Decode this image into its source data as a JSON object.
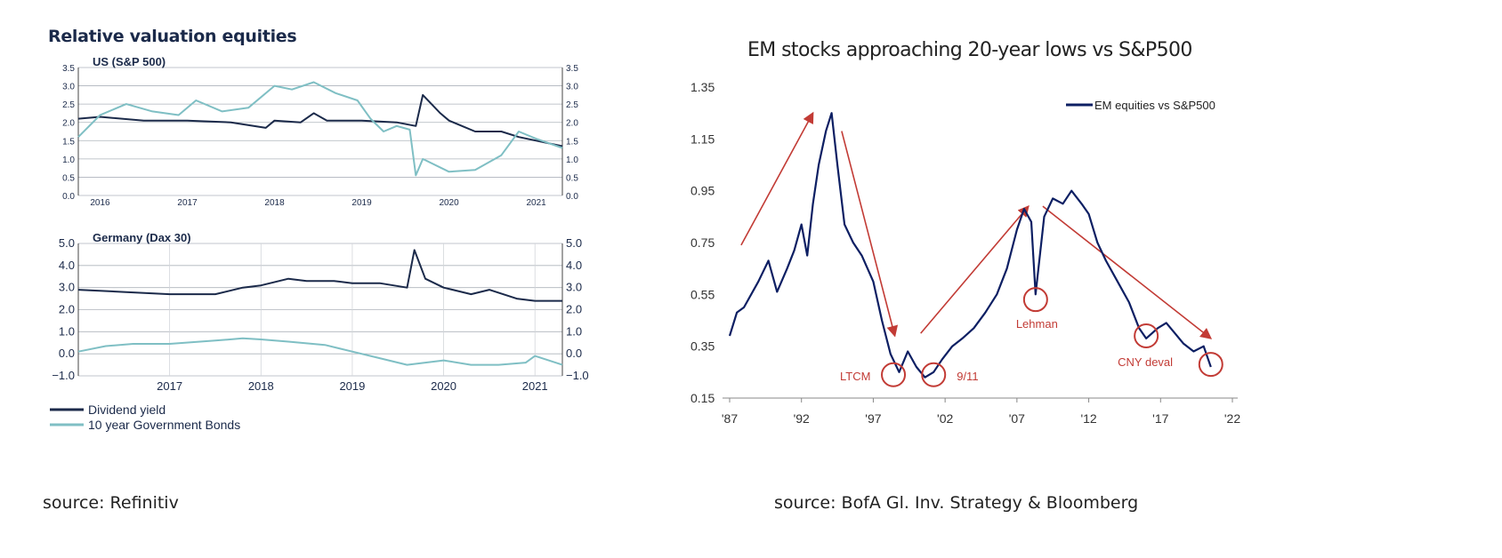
{
  "left": {
    "title": "Relative valuation equities",
    "source": "source: Refinitiv",
    "legend": [
      {
        "label": "Dividend yield",
        "color": "#1b2a4a"
      },
      {
        "label": "10 year Government Bonds",
        "color": "#7fbfc4"
      }
    ]
  },
  "right": {
    "title": "EM stocks approaching 20-year lows vs S&P500",
    "source": "source: BofA Gl. Inv. Strategy & Bloomberg"
  },
  "chart_data": [
    {
      "type": "line",
      "title": "US (S&P 500)",
      "ylim": [
        0.0,
        3.5
      ],
      "y_ticks": [
        "0.0",
        "0.5",
        "1.0",
        "1.5",
        "2.0",
        "2.5",
        "3.0",
        "3.5"
      ],
      "x_ticks": [
        "2016",
        "2017",
        "2018",
        "2019",
        "2020",
        "2021"
      ],
      "xlim": [
        2015.75,
        2021.3
      ],
      "grid": true,
      "series": [
        {
          "name": "Dividend yield",
          "color": "#1b2a4a",
          "x": [
            2015.75,
            2016.0,
            2016.5,
            2017.0,
            2017.5,
            2017.9,
            2018.0,
            2018.3,
            2018.45,
            2018.6,
            2019.0,
            2019.4,
            2019.62,
            2019.7,
            2019.9,
            2020.0,
            2020.3,
            2020.6,
            2020.8,
            2021.0,
            2021.3
          ],
          "values": [
            2.1,
            2.15,
            2.05,
            2.05,
            2.0,
            1.85,
            2.05,
            2.0,
            2.25,
            2.05,
            2.05,
            2.0,
            1.9,
            2.75,
            2.25,
            2.05,
            1.75,
            1.75,
            1.6,
            1.5,
            1.35
          ]
        },
        {
          "name": "10 year Government Bonds",
          "color": "#7fbfc4",
          "x": [
            2015.75,
            2016.0,
            2016.3,
            2016.6,
            2016.9,
            2017.1,
            2017.4,
            2017.7,
            2018.0,
            2018.2,
            2018.45,
            2018.7,
            2018.95,
            2019.1,
            2019.25,
            2019.4,
            2019.55,
            2019.62,
            2019.7,
            2020.0,
            2020.3,
            2020.6,
            2020.8,
            2021.0,
            2021.3
          ],
          "values": [
            1.6,
            2.2,
            2.5,
            2.3,
            2.2,
            2.6,
            2.3,
            2.4,
            3.0,
            2.9,
            3.1,
            2.8,
            2.6,
            2.1,
            1.75,
            1.9,
            1.8,
            0.55,
            1.0,
            0.65,
            0.7,
            1.1,
            1.75,
            1.55,
            1.3
          ]
        }
      ]
    },
    {
      "type": "line",
      "title": "Germany (Dax 30)",
      "ylim": [
        -1.0,
        5.0
      ],
      "y_ticks": [
        "−1.0",
        "0.0",
        "1.0",
        "2.0",
        "3.0",
        "4.0",
        "5.0"
      ],
      "x_ticks": [
        "2017",
        "2018",
        "2019",
        "2020",
        "2021"
      ],
      "xlim": [
        2016.0,
        2021.3
      ],
      "grid": true,
      "series": [
        {
          "name": "Dividend yield",
          "color": "#1b2a4a",
          "x": [
            2016.0,
            2016.5,
            2017.0,
            2017.5,
            2017.8,
            2018.0,
            2018.3,
            2018.5,
            2018.8,
            2019.0,
            2019.3,
            2019.6,
            2019.68,
            2019.8,
            2020.0,
            2020.3,
            2020.5,
            2020.8,
            2021.0,
            2021.3
          ],
          "values": [
            2.9,
            2.8,
            2.7,
            2.7,
            3.0,
            3.1,
            3.4,
            3.3,
            3.3,
            3.2,
            3.2,
            3.0,
            4.7,
            3.4,
            3.0,
            2.7,
            2.9,
            2.5,
            2.4,
            2.4
          ]
        },
        {
          "name": "10 year Government Bonds",
          "color": "#7fbfc4",
          "x": [
            2016.0,
            2016.3,
            2016.6,
            2017.0,
            2017.5,
            2017.8,
            2018.0,
            2018.3,
            2018.7,
            2019.0,
            2019.3,
            2019.6,
            2019.9,
            2020.0,
            2020.3,
            2020.6,
            2020.9,
            2021.0,
            2021.3
          ],
          "values": [
            0.1,
            0.35,
            0.45,
            0.45,
            0.6,
            0.7,
            0.65,
            0.55,
            0.4,
            0.1,
            -0.2,
            -0.5,
            -0.35,
            -0.3,
            -0.5,
            -0.5,
            -0.4,
            -0.1,
            -0.5
          ]
        }
      ]
    },
    {
      "type": "line",
      "title": "EM stocks approaching 20-year lows vs S&P500",
      "ylim": [
        0.15,
        1.35
      ],
      "y_ticks": [
        "1.35",
        "1.15",
        "0.95",
        "0.75",
        "0.55",
        "0.35",
        "0.15"
      ],
      "x_ticks": [
        "'87",
        "'92",
        "'97",
        "'02",
        "'07",
        "'12",
        "'17",
        "'22"
      ],
      "xlim": [
        1987,
        2022
      ],
      "legend": "top-right",
      "annotations": [
        "LTCM",
        "9/11",
        "Lehman",
        "CNY deval"
      ],
      "series": [
        {
          "name": "EM equities vs S&P500",
          "color": "#0d1f63",
          "x": [
            1987.0,
            1987.5,
            1988.0,
            1989.0,
            1989.7,
            1990.3,
            1991.0,
            1991.5,
            1992.0,
            1992.4,
            1992.8,
            1993.2,
            1993.7,
            1994.1,
            1994.5,
            1995.0,
            1995.6,
            1996.2,
            1997.0,
            1997.6,
            1998.2,
            1998.8,
            1999.4,
            2000.0,
            2000.6,
            2001.2,
            2001.8,
            2002.5,
            2003.2,
            2004.0,
            2004.8,
            2005.6,
            2006.3,
            2007.0,
            2007.5,
            2008.0,
            2008.3,
            2008.9,
            2009.5,
            2010.2,
            2010.8,
            2011.5,
            2012.0,
            2012.6,
            2013.2,
            2014.0,
            2014.8,
            2015.5,
            2016.0,
            2016.8,
            2017.4,
            2018.0,
            2018.6,
            2019.3,
            2020.0,
            2020.5
          ],
          "values": [
            0.39,
            0.48,
            0.5,
            0.6,
            0.68,
            0.56,
            0.65,
            0.72,
            0.82,
            0.7,
            0.9,
            1.05,
            1.18,
            1.25,
            1.05,
            0.82,
            0.75,
            0.7,
            0.6,
            0.45,
            0.32,
            0.25,
            0.33,
            0.27,
            0.23,
            0.25,
            0.3,
            0.35,
            0.38,
            0.42,
            0.48,
            0.55,
            0.65,
            0.8,
            0.88,
            0.83,
            0.55,
            0.85,
            0.92,
            0.9,
            0.95,
            0.9,
            0.86,
            0.75,
            0.68,
            0.6,
            0.52,
            0.42,
            0.38,
            0.42,
            0.44,
            0.4,
            0.36,
            0.33,
            0.35,
            0.27
          ]
        }
      ]
    }
  ]
}
